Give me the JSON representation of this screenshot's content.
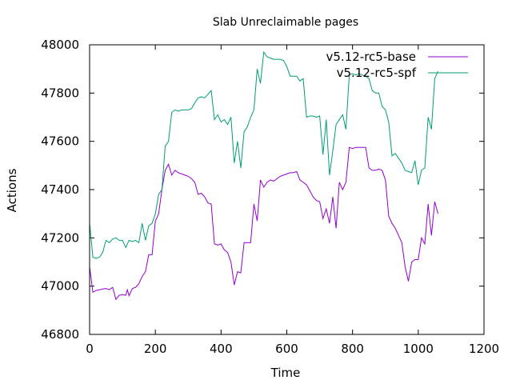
{
  "chart_data": {
    "type": "line",
    "title": "Slab Unreclaimable pages",
    "xlabel": "Time",
    "ylabel": "Actions",
    "xlim": [
      0,
      1200
    ],
    "ylim": [
      46800,
      48000
    ],
    "xticks": [
      0,
      200,
      400,
      600,
      800,
      1000,
      1200
    ],
    "yticks": [
      46800,
      47000,
      47200,
      47400,
      47600,
      47800,
      48000
    ],
    "grid": false,
    "legend_position": "top-right",
    "series": [
      {
        "name": "v5.12-rc5-base",
        "color": "#9400d3",
        "points": [
          [
            0,
            47080
          ],
          [
            10,
            46975
          ],
          [
            20,
            46982
          ],
          [
            30,
            46985
          ],
          [
            40,
            46988
          ],
          [
            50,
            46990
          ],
          [
            60,
            46985
          ],
          [
            70,
            46995
          ],
          [
            80,
            46945
          ],
          [
            90,
            46962
          ],
          [
            100,
            46965
          ],
          [
            110,
            46962
          ],
          [
            115,
            46985
          ],
          [
            120,
            46960
          ],
          [
            130,
            46990
          ],
          [
            140,
            46995
          ],
          [
            150,
            47010
          ],
          [
            160,
            47040
          ],
          [
            170,
            47060
          ],
          [
            180,
            47130
          ],
          [
            190,
            47130
          ],
          [
            200,
            47270
          ],
          [
            210,
            47300
          ],
          [
            220,
            47400
          ],
          [
            230,
            47480
          ],
          [
            240,
            47505
          ],
          [
            250,
            47460
          ],
          [
            260,
            47480
          ],
          [
            270,
            47470
          ],
          [
            280,
            47465
          ],
          [
            290,
            47460
          ],
          [
            300,
            47455
          ],
          [
            310,
            47445
          ],
          [
            320,
            47430
          ],
          [
            330,
            47380
          ],
          [
            340,
            47385
          ],
          [
            350,
            47370
          ],
          [
            360,
            47345
          ],
          [
            370,
            47340
          ],
          [
            380,
            47175
          ],
          [
            390,
            47170
          ],
          [
            400,
            47175
          ],
          [
            410,
            47150
          ],
          [
            420,
            47140
          ],
          [
            430,
            47100
          ],
          [
            440,
            47005
          ],
          [
            450,
            47060
          ],
          [
            460,
            47055
          ],
          [
            470,
            47180
          ],
          [
            480,
            47180
          ],
          [
            490,
            47180
          ],
          [
            500,
            47340
          ],
          [
            510,
            47270
          ],
          [
            520,
            47440
          ],
          [
            530,
            47410
          ],
          [
            540,
            47430
          ],
          [
            550,
            47440
          ],
          [
            560,
            47435
          ],
          [
            570,
            47445
          ],
          [
            580,
            47455
          ],
          [
            590,
            47460
          ],
          [
            600,
            47465
          ],
          [
            610,
            47470
          ],
          [
            620,
            47470
          ],
          [
            630,
            47475
          ],
          [
            640,
            47440
          ],
          [
            650,
            47430
          ],
          [
            660,
            47420
          ],
          [
            670,
            47395
          ],
          [
            680,
            47370
          ],
          [
            690,
            47355
          ],
          [
            700,
            47350
          ],
          [
            710,
            47280
          ],
          [
            720,
            47320
          ],
          [
            730,
            47260
          ],
          [
            740,
            47370
          ],
          [
            750,
            47240
          ],
          [
            760,
            47430
          ],
          [
            770,
            47400
          ],
          [
            780,
            47430
          ],
          [
            790,
            47575
          ],
          [
            800,
            47570
          ],
          [
            810,
            47575
          ],
          [
            820,
            47575
          ],
          [
            830,
            47575
          ],
          [
            840,
            47575
          ],
          [
            850,
            47490
          ],
          [
            860,
            47480
          ],
          [
            870,
            47480
          ],
          [
            880,
            47485
          ],
          [
            890,
            47480
          ],
          [
            900,
            47440
          ],
          [
            910,
            47290
          ],
          [
            920,
            47260
          ],
          [
            930,
            47240
          ],
          [
            940,
            47210
          ],
          [
            950,
            47180
          ],
          [
            960,
            47080
          ],
          [
            970,
            47020
          ],
          [
            980,
            47100
          ],
          [
            990,
            47110
          ],
          [
            1000,
            47110
          ],
          [
            1010,
            47200
          ],
          [
            1020,
            47175
          ],
          [
            1030,
            47340
          ],
          [
            1040,
            47210
          ],
          [
            1050,
            47350
          ],
          [
            1060,
            47300
          ]
        ]
      },
      {
        "name": "v5.12-rc5-spf",
        "color": "#009e73",
        "points": [
          [
            0,
            47260
          ],
          [
            10,
            47120
          ],
          [
            20,
            47115
          ],
          [
            30,
            47120
          ],
          [
            40,
            47140
          ],
          [
            50,
            47190
          ],
          [
            60,
            47180
          ],
          [
            70,
            47195
          ],
          [
            80,
            47200
          ],
          [
            90,
            47190
          ],
          [
            100,
            47190
          ],
          [
            110,
            47160
          ],
          [
            120,
            47190
          ],
          [
            130,
            47185
          ],
          [
            140,
            47190
          ],
          [
            150,
            47180
          ],
          [
            160,
            47260
          ],
          [
            170,
            47190
          ],
          [
            180,
            47250
          ],
          [
            190,
            47260
          ],
          [
            200,
            47300
          ],
          [
            210,
            47380
          ],
          [
            220,
            47400
          ],
          [
            230,
            47580
          ],
          [
            240,
            47600
          ],
          [
            250,
            47720
          ],
          [
            260,
            47730
          ],
          [
            270,
            47725
          ],
          [
            280,
            47730
          ],
          [
            290,
            47730
          ],
          [
            300,
            47730
          ],
          [
            310,
            47735
          ],
          [
            320,
            47760
          ],
          [
            330,
            47780
          ],
          [
            340,
            47785
          ],
          [
            350,
            47780
          ],
          [
            360,
            47795
          ],
          [
            370,
            47810
          ],
          [
            380,
            47690
          ],
          [
            390,
            47710
          ],
          [
            400,
            47680
          ],
          [
            410,
            47690
          ],
          [
            420,
            47670
          ],
          [
            430,
            47700
          ],
          [
            440,
            47510
          ],
          [
            450,
            47600
          ],
          [
            460,
            47490
          ],
          [
            470,
            47640
          ],
          [
            480,
            47660
          ],
          [
            490,
            47700
          ],
          [
            500,
            47730
          ],
          [
            510,
            47900
          ],
          [
            520,
            47840
          ],
          [
            530,
            47970
          ],
          [
            540,
            47950
          ],
          [
            550,
            47945
          ],
          [
            560,
            47940
          ],
          [
            570,
            47940
          ],
          [
            580,
            47940
          ],
          [
            590,
            47935
          ],
          [
            600,
            47910
          ],
          [
            610,
            47870
          ],
          [
            620,
            47870
          ],
          [
            630,
            47870
          ],
          [
            640,
            47850
          ],
          [
            650,
            47860
          ],
          [
            660,
            47700
          ],
          [
            670,
            47705
          ],
          [
            680,
            47705
          ],
          [
            690,
            47700
          ],
          [
            700,
            47705
          ],
          [
            710,
            47545
          ],
          [
            720,
            47690
          ],
          [
            730,
            47460
          ],
          [
            740,
            47560
          ],
          [
            750,
            47670
          ],
          [
            760,
            47690
          ],
          [
            770,
            47710
          ],
          [
            780,
            47650
          ],
          [
            790,
            47875
          ],
          [
            800,
            47880
          ],
          [
            810,
            47875
          ],
          [
            820,
            47880
          ],
          [
            830,
            47875
          ],
          [
            840,
            47870
          ],
          [
            850,
            47860
          ],
          [
            860,
            47810
          ],
          [
            870,
            47800
          ],
          [
            880,
            47800
          ],
          [
            890,
            47745
          ],
          [
            900,
            47730
          ],
          [
            910,
            47680
          ],
          [
            920,
            47540
          ],
          [
            930,
            47550
          ],
          [
            940,
            47530
          ],
          [
            950,
            47510
          ],
          [
            960,
            47480
          ],
          [
            970,
            47475
          ],
          [
            980,
            47470
          ],
          [
            990,
            47520
          ],
          [
            1000,
            47420
          ],
          [
            1010,
            47480
          ],
          [
            1020,
            47490
          ],
          [
            1030,
            47700
          ],
          [
            1040,
            47650
          ],
          [
            1050,
            47860
          ],
          [
            1060,
            47890
          ]
        ]
      }
    ]
  }
}
